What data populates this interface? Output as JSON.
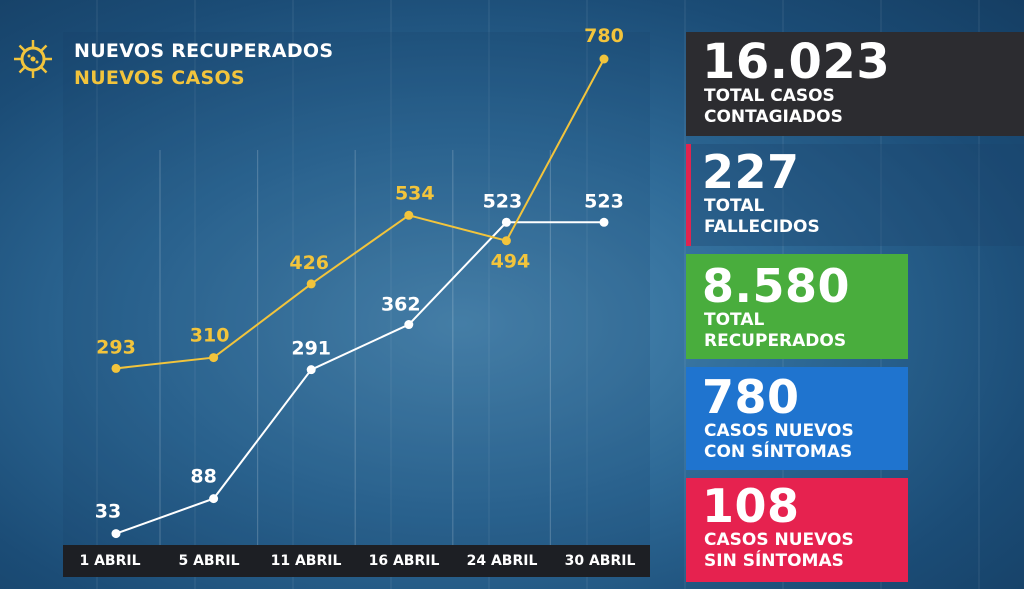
{
  "legend": {
    "recovered_label": "NUEVOS RECUPERADOS",
    "cases_label": "NUEVOS CASOS"
  },
  "chart_data": {
    "type": "line",
    "categories": [
      "1 ABRIL",
      "5 ABRIL",
      "11 ABRIL",
      "16 ABRIL",
      "24 ABRIL",
      "30 ABRIL"
    ],
    "series": [
      {
        "name": "NUEVOS RECUPERADOS",
        "color": "#ffffff",
        "values": [
          33,
          88,
          291,
          362,
          523,
          523
        ]
      },
      {
        "name": "NUEVOS CASOS",
        "color": "#f2c43c",
        "values": [
          293,
          310,
          426,
          534,
          494,
          780
        ]
      }
    ],
    "ylim": [
      0,
      800
    ],
    "grid": "vertical"
  },
  "stats": [
    {
      "value": "16.023",
      "label1": "TOTAL CASOS",
      "label2": "CONTAGIADOS",
      "color": "#2c2c30"
    },
    {
      "value": "227",
      "label1": "TOTAL",
      "label2": "FALLECIDOS",
      "color": "#e0244f"
    },
    {
      "value": "8.580",
      "label1": "TOTAL",
      "label2": "RECUPERADOS",
      "color": "#49ad3d"
    },
    {
      "value": "780",
      "label1": "CASOS NUEVOS",
      "label2": "CON SÍNTOMAS",
      "color": "#1f74cf"
    },
    {
      "value": "108",
      "label1": "CASOS NUEVOS",
      "label2": "SIN SÍNTOMAS",
      "color": "#e6224f"
    }
  ],
  "icons": {
    "logo": "virus-icon"
  }
}
